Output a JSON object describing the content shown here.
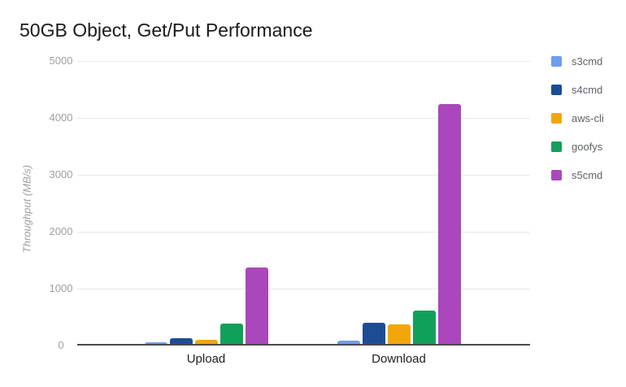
{
  "chart_data": {
    "type": "bar",
    "title": "50GB Object, Get/Put Performance",
    "xlabel": "",
    "ylabel": "Throughput (MB/s)",
    "categories": [
      "Upload",
      "Download"
    ],
    "series": [
      {
        "name": "s3cmd",
        "color": "#6d9eeb",
        "values": [
          55,
          85
        ]
      },
      {
        "name": "s4cmd",
        "color": "#1d4c94",
        "values": [
          125,
          400
        ]
      },
      {
        "name": "aws-cli",
        "color": "#f2a60c",
        "values": [
          100,
          365
        ]
      },
      {
        "name": "goofys",
        "color": "#11a05a",
        "values": [
          385,
          620
        ]
      },
      {
        "name": "s5cmd",
        "color": "#ab47bc",
        "values": [
          1375,
          4250
        ]
      }
    ],
    "ylim": [
      0,
      5000
    ],
    "yticks": [
      0,
      1000,
      2000,
      3000,
      4000,
      5000
    ],
    "grid": true,
    "legend_position": "right",
    "colors": {
      "background": "#ffffff",
      "gridline": "#e8e8e8",
      "axis_line": "#4a4a4a",
      "tick_label": "#9e9e9e",
      "category_label": "#212121",
      "title": "#1a1a1a",
      "legend_label": "#5f6368"
    }
  }
}
